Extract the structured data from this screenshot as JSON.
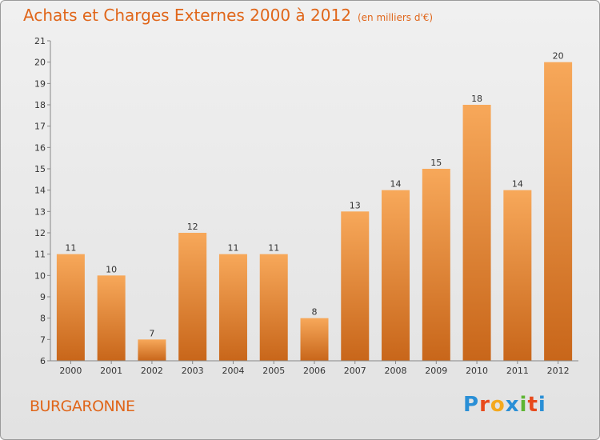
{
  "chart_data": {
    "type": "bar",
    "title": "Achats et Charges Externes 2000 à 2012",
    "subtitle": "(en milliers d'€)",
    "categories": [
      "2000",
      "2001",
      "2002",
      "2003",
      "2004",
      "2005",
      "2006",
      "2007",
      "2008",
      "2009",
      "2010",
      "2011",
      "2012"
    ],
    "values": [
      11,
      10,
      7,
      12,
      11,
      11,
      8,
      13,
      14,
      15,
      18,
      14,
      20
    ],
    "ylim": [
      6,
      21
    ],
    "yticks": [
      6,
      7,
      8,
      9,
      10,
      11,
      12,
      13,
      14,
      15,
      16,
      17,
      18,
      19,
      20,
      21
    ],
    "grid": false,
    "bar_color_top": "#f7a85a",
    "bar_color_bottom": "#c8661a",
    "title_color": "#e0661a"
  },
  "footer": {
    "commune": "BURGARONNE",
    "logo": "Proxiti",
    "logo_colors": [
      "#2a8fd6",
      "#e84a1c",
      "#f4a91e",
      "#2a8fd6",
      "#5db532",
      "#e84a1c",
      "#2a8fd6"
    ]
  }
}
